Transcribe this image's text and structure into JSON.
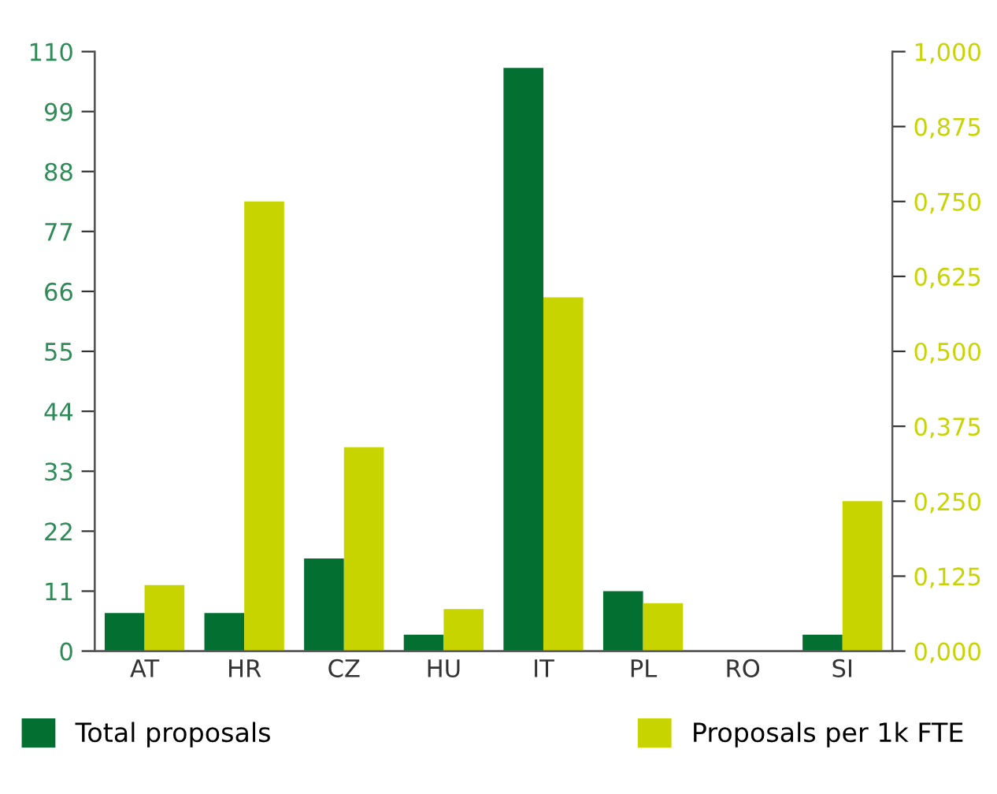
{
  "chart_data": {
    "type": "bar",
    "categories": [
      "AT",
      "HR",
      "CZ",
      "HU",
      "IT",
      "PL",
      "RO",
      "SI"
    ],
    "series": [
      {
        "name": "Total proposals",
        "color": "#037032",
        "values": [
          7,
          7,
          17,
          3,
          107,
          11,
          0,
          3
        ]
      },
      {
        "name": "Proposals per 1k FTE",
        "color": "#c8d400",
        "axis": "y2",
        "values": [
          0.11,
          0.75,
          0.34,
          0.07,
          0.59,
          0.08,
          0,
          0.25
        ]
      }
    ],
    "ylim": [
      0,
      110
    ],
    "yticks": [
      0,
      11,
      22,
      33,
      44,
      55,
      66,
      77,
      88,
      99,
      110
    ],
    "y2lim": [
      0,
      1
    ],
    "y2ticks": [
      {
        "value": 0,
        "label": "0,000"
      },
      {
        "value": 0.125,
        "label": "0,125"
      },
      {
        "value": 0.25,
        "label": "0,250"
      },
      {
        "value": 0.375,
        "label": "0,375"
      },
      {
        "value": 0.5,
        "label": "0,500"
      },
      {
        "value": 0.625,
        "label": "0,625"
      },
      {
        "value": 0.75,
        "label": "0,750"
      },
      {
        "value": 0.875,
        "label": "0,875"
      },
      {
        "value": 1,
        "label": "1,000"
      }
    ],
    "grid": false,
    "legend": "bottom"
  }
}
